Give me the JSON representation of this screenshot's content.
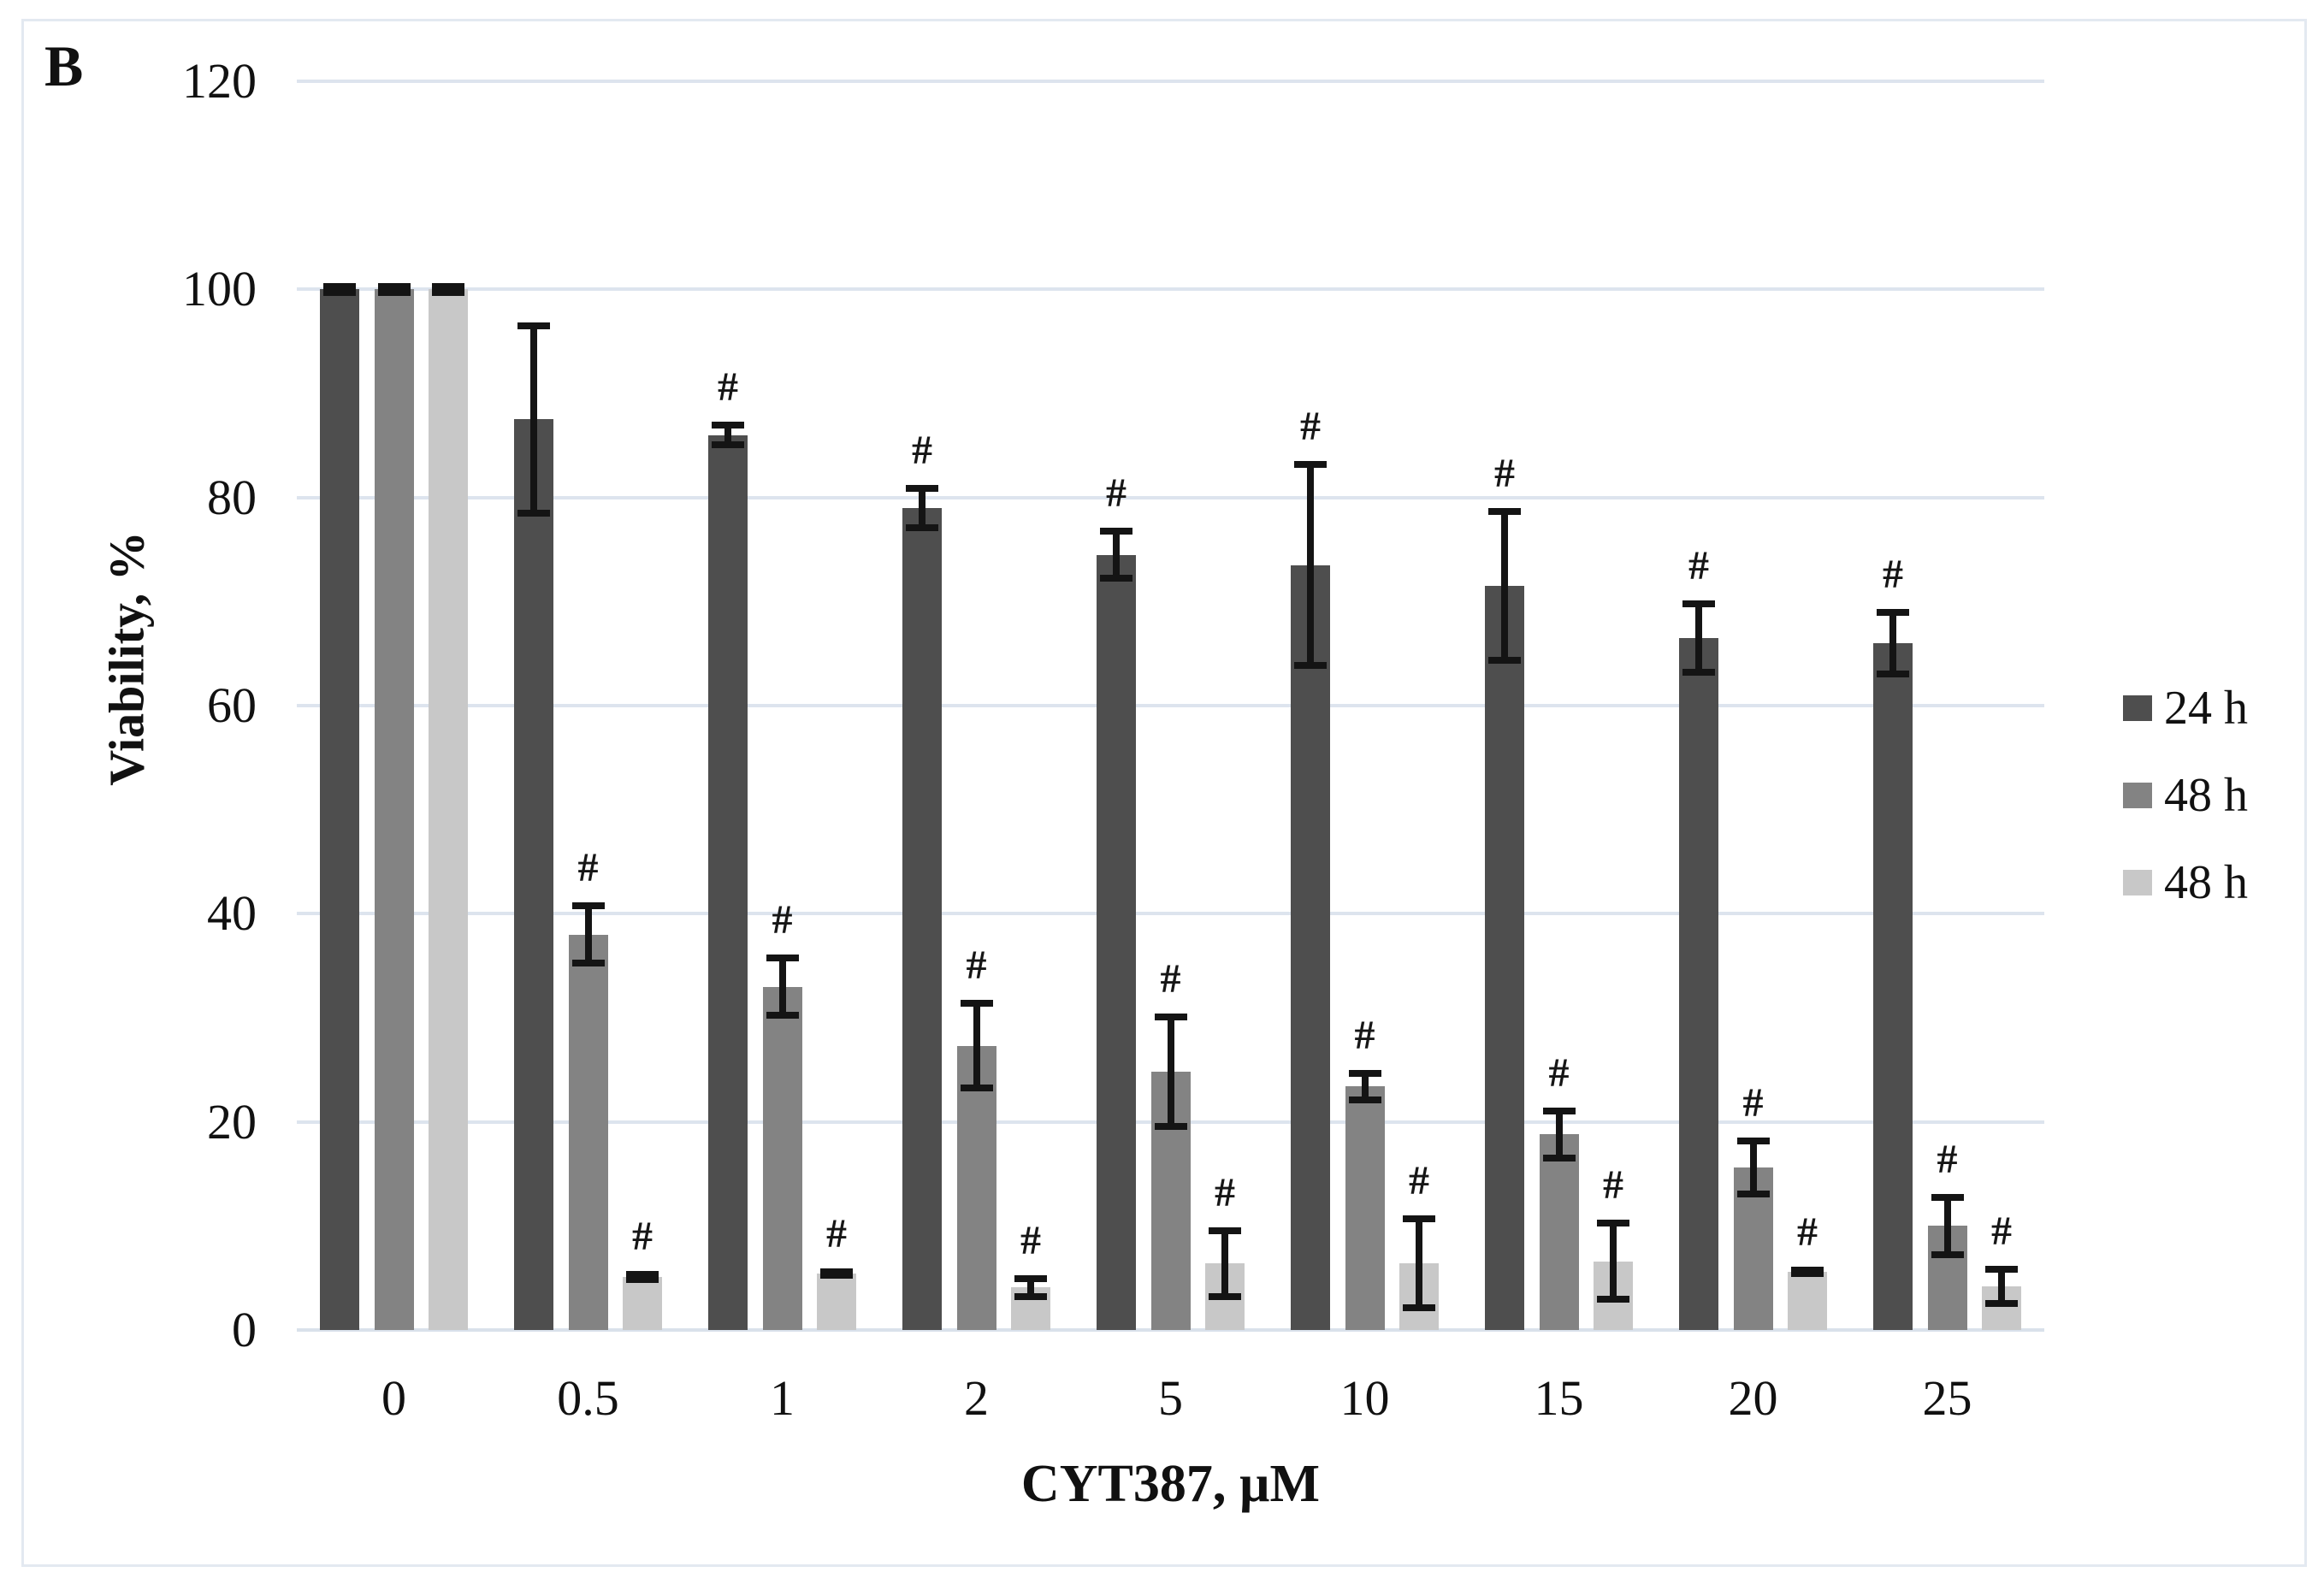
{
  "chart_data": {
    "type": "bar",
    "panel_label": "B",
    "xlabel": "CYT387, µM",
    "ylabel": "Viability,  %",
    "ylim": [
      0,
      120
    ],
    "yticks": [
      0,
      20,
      40,
      60,
      80,
      100,
      120
    ],
    "categories": [
      "0",
      "0.5",
      "1",
      "2",
      "5",
      "10",
      "15",
      "20",
      "25"
    ],
    "grid": true,
    "grid_color": "#dde4ee",
    "axis_line_color": "#d9e1eb",
    "error_bar_color": "#141414",
    "annotation_symbol": "#",
    "legend_position": "right",
    "series": [
      {
        "name": "24 h",
        "color": "#4e4e4e",
        "values": [
          100,
          87.5,
          86,
          79,
          74.5,
          73.5,
          71.5,
          66.5,
          66
        ],
        "errors": [
          0.6,
          9.3,
          1.3,
          2.2,
          2.6,
          10,
          7.5,
          3.6,
          3.3
        ],
        "hash": [
          false,
          false,
          true,
          true,
          true,
          true,
          true,
          true,
          true
        ]
      },
      {
        "name": "48 h",
        "color": "#838383",
        "values": [
          100,
          38,
          33,
          27.3,
          24.8,
          23.4,
          18.8,
          15.6,
          10
        ],
        "errors": [
          0.6,
          3.1,
          3.1,
          4.4,
          5.6,
          1.6,
          2.6,
          2.9,
          3.1
        ],
        "hash": [
          false,
          true,
          true,
          true,
          true,
          true,
          true,
          true,
          true
        ]
      },
      {
        "name": "48 h",
        "color": "#c8c8c8",
        "values": [
          100,
          5.1,
          5.4,
          4.1,
          6.4,
          6.4,
          6.6,
          5.6,
          4.2
        ],
        "errors": [
          0.6,
          0.6,
          0.5,
          1.2,
          3.5,
          4.6,
          4.0,
          0.5,
          2.0
        ],
        "hash": [
          false,
          true,
          true,
          true,
          true,
          true,
          true,
          true,
          true
        ]
      }
    ]
  }
}
